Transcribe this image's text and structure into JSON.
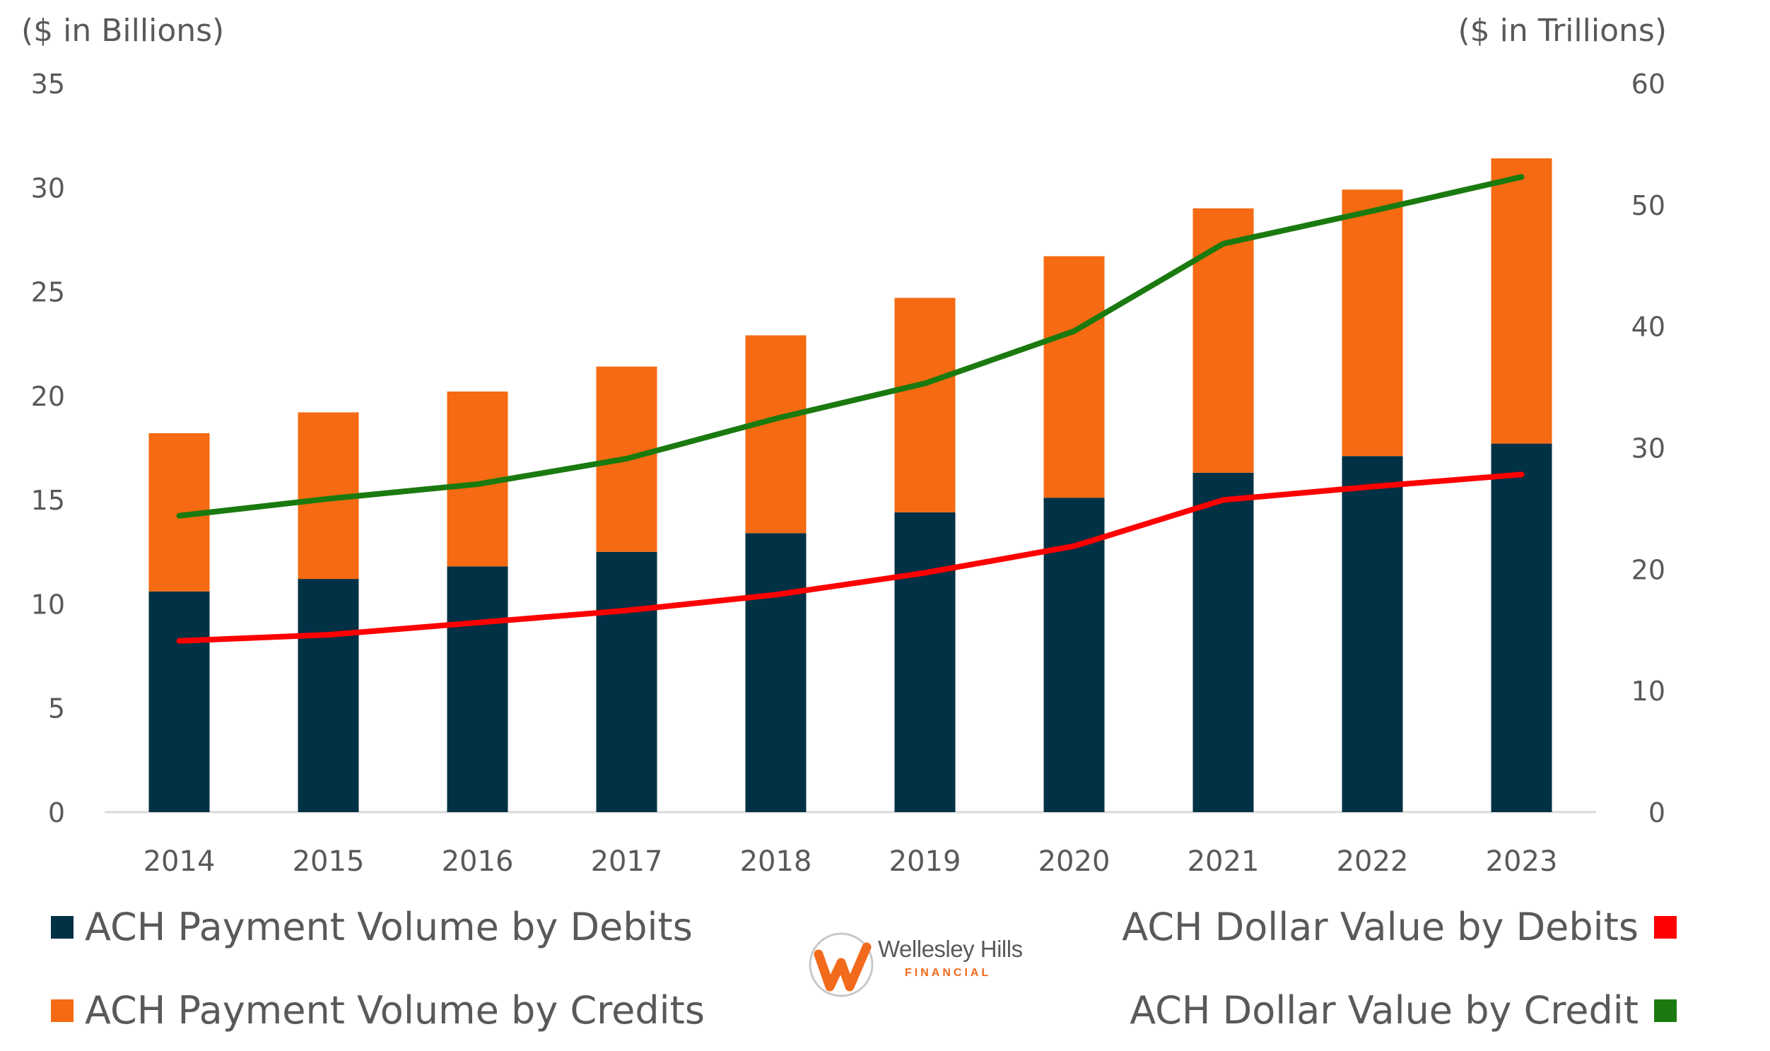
{
  "chart_data": {
    "type": "bar",
    "stacked": true,
    "categories": [
      "2014",
      "2015",
      "2016",
      "2017",
      "2018",
      "2019",
      "2020",
      "2021",
      "2022",
      "2023"
    ],
    "series": [
      {
        "name": "ACH Payment Volume by Debits",
        "axis": "left",
        "kind": "bar",
        "color": "#003145",
        "values": [
          10.6,
          11.2,
          11.8,
          12.5,
          13.4,
          14.4,
          15.1,
          16.3,
          17.1,
          17.7
        ]
      },
      {
        "name": "ACH Payment Volume by Credits",
        "axis": "left",
        "kind": "bar",
        "color": "#F56A12",
        "values": [
          7.6,
          8.0,
          8.4,
          8.9,
          9.5,
          10.3,
          11.6,
          12.7,
          12.8,
          13.7
        ]
      },
      {
        "name": "ACH Dollar Value by Debits",
        "axis": "right",
        "kind": "line",
        "color": "#FF0000",
        "values": [
          14.1,
          14.6,
          15.6,
          16.6,
          17.9,
          19.7,
          21.9,
          25.7,
          26.8,
          27.8
        ]
      },
      {
        "name": "ACH Dollar Value by Credit",
        "axis": "right",
        "kind": "line",
        "color": "#1A7A0F",
        "values": [
          24.4,
          25.8,
          27.0,
          29.1,
          32.4,
          35.3,
          39.6,
          46.8,
          49.5,
          52.3
        ]
      }
    ],
    "y_left": {
      "label": "($ in Billions)",
      "range": [
        0,
        35
      ],
      "ticks": [
        "0",
        "5",
        "10",
        "15",
        "20",
        "25",
        "30",
        "35"
      ]
    },
    "y_right": {
      "label": "($ in Trillions)",
      "range": [
        0,
        60
      ],
      "ticks": [
        "0",
        "10",
        "20",
        "30",
        "40",
        "50",
        "60"
      ]
    },
    "xlabel": "",
    "legend_position": "bottom",
    "grid": false
  },
  "legend": {
    "debits_volume": "ACH Payment Volume by Debits",
    "credits_volume": "ACH Payment Volume by Credits",
    "debits_value": "ACH Dollar Value by Debits",
    "credits_value": "ACH Dollar Value by Credit"
  },
  "logo": {
    "name": "Wellesley Hills",
    "sub": "FINANCIAL"
  }
}
